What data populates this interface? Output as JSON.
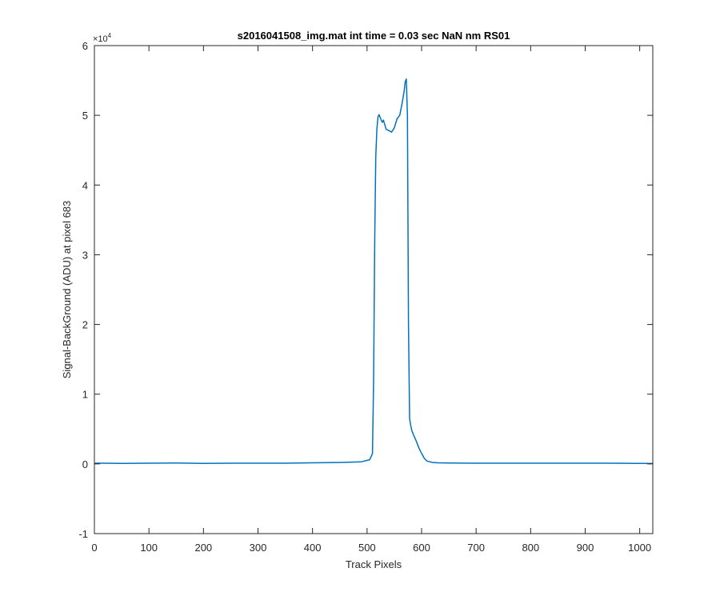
{
  "chart_data": {
    "type": "line",
    "title": "s2016041508_img.mat int time = 0.03 sec  NaN nm RS01",
    "xlabel": "Track Pixels",
    "ylabel": "Signal-BackGround (ADU) at pixel 683",
    "xlim": [
      0,
      1024
    ],
    "ylim": [
      -10000,
      60000
    ],
    "y_multiplier_label": "×10",
    "y_multiplier_exponent": "4",
    "x_ticks": [
      0,
      100,
      200,
      300,
      400,
      500,
      600,
      700,
      800,
      900,
      1000
    ],
    "x_tick_labels": [
      "0",
      "100",
      "200",
      "300",
      "400",
      "500",
      "600",
      "700",
      "800",
      "900",
      "1000"
    ],
    "y_ticks": [
      -10000,
      0,
      10000,
      20000,
      30000,
      40000,
      50000,
      60000
    ],
    "y_tick_labels": [
      "-1",
      "0",
      "1",
      "2",
      "3",
      "4",
      "5",
      "6"
    ],
    "grid": false,
    "line_color": "#0072BD",
    "series": [
      {
        "x": [
          0,
          50,
          100,
          150,
          200,
          250,
          300,
          350,
          400,
          450,
          490,
          505,
          510,
          512,
          514,
          516,
          518,
          520,
          522,
          525,
          528,
          530,
          535,
          540,
          545,
          550,
          555,
          560,
          565,
          568,
          570,
          572,
          574,
          576,
          578,
          580,
          582,
          585,
          590,
          595,
          600,
          605,
          610,
          615,
          620,
          630,
          650,
          700,
          750,
          800,
          850,
          900,
          950,
          1000,
          1024
        ],
        "y": [
          100,
          80,
          100,
          120,
          80,
          100,
          100,
          100,
          150,
          200,
          300,
          600,
          1500,
          12000,
          32000,
          44000,
          48000,
          49800,
          50100,
          49500,
          49000,
          49300,
          48000,
          47800,
          47600,
          48200,
          49500,
          50000,
          52000,
          53500,
          54800,
          55200,
          50000,
          20000,
          6500,
          5500,
          4800,
          4200,
          3300,
          2300,
          1500,
          800,
          400,
          300,
          200,
          150,
          120,
          100,
          100,
          100,
          100,
          100,
          100,
          80,
          50
        ]
      }
    ]
  }
}
